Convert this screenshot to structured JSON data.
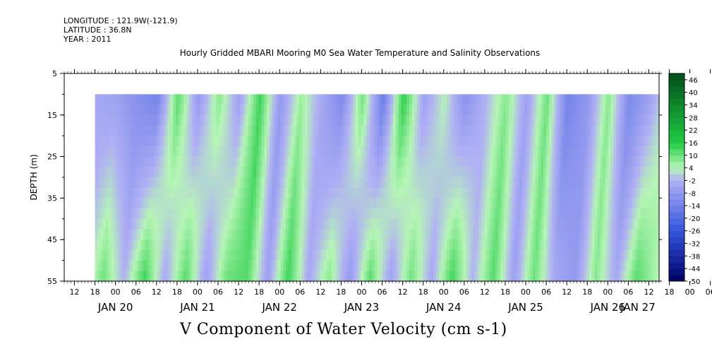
{
  "meta": {
    "longitude": "LONGITUDE : 121.9W(-121.9)",
    "latitude": "LATITUDE : 36.8N",
    "year": "YEAR : 2011"
  },
  "chart_data": {
    "type": "heatmap",
    "title": "Hourly Gridded MBARI Mooring M0 Sea Water Temperature and Salinity Observations",
    "variable_title": "V Component of Water Velocity (cm s-1)",
    "ylabel": "DEPTH (m)",
    "ylim": [
      5,
      55
    ],
    "y_inverted": true,
    "y_ticks": [
      5,
      15,
      25,
      35,
      45,
      55
    ],
    "data_depth_range": [
      10,
      55
    ],
    "time_range": {
      "start": "JAN 20 09:00",
      "end": "JAN 27 12:00"
    },
    "data_start": "JAN 20 18:00",
    "hour_ticks": [
      "12",
      "18",
      "00",
      "06",
      "12",
      "18",
      "00",
      "06",
      "12",
      "18",
      "00",
      "06",
      "12",
      "18",
      "00",
      "06",
      "12",
      "18",
      "00",
      "06",
      "12",
      "18",
      "00",
      "06",
      "12",
      "18",
      "00",
      "06",
      "12",
      "18",
      "00",
      "06",
      "12"
    ],
    "date_labels": [
      "JAN 20",
      "JAN 21",
      "JAN 22",
      "JAN 23",
      "JAN 24",
      "JAN 25",
      "JAN 26",
      "JAN 27"
    ],
    "colorbar": {
      "tick_labels": [
        "46",
        "40",
        "34",
        "28",
        "22",
        "16",
        "10",
        "4",
        "-2",
        "-8",
        "-14",
        "-20",
        "-26",
        "-32",
        "-38",
        "-44",
        "-50"
      ],
      "range": [
        -50,
        49
      ],
      "step": 3
    },
    "colors": {
      "high": "#004d1a",
      "mid_high": "#22cc44",
      "low_pos": "#b6f5b6",
      "low_neg": "#b0b0f4",
      "mid_low": "#3355dd",
      "low": "#000066"
    },
    "field_approx": {
      "description_units": "cm s-1",
      "column_hours_from_data_start": [
        0,
        6,
        12,
        18,
        24,
        30,
        36,
        42,
        48,
        54,
        60,
        66,
        72,
        78,
        84,
        90,
        96,
        102,
        108,
        114,
        120,
        126,
        132,
        138,
        144,
        150,
        156,
        162,
        168,
        174
      ],
      "surface_values": [
        -4,
        -6,
        -10,
        -14,
        12,
        -8,
        8,
        -6,
        14,
        -8,
        6,
        -4,
        -12,
        10,
        -16,
        16,
        -6,
        4,
        -10,
        -2,
        8,
        -6,
        10,
        -14,
        -8,
        8,
        -12,
        -6,
        6,
        -10
      ],
      "bottom_values": [
        -2,
        10,
        -2,
        14,
        -4,
        12,
        -6,
        10,
        12,
        -6,
        14,
        -4,
        8,
        -8,
        12,
        -6,
        10,
        -4,
        14,
        -2,
        12,
        -6,
        10,
        -4,
        -8,
        8,
        -4,
        12,
        4,
        -6
      ]
    }
  }
}
